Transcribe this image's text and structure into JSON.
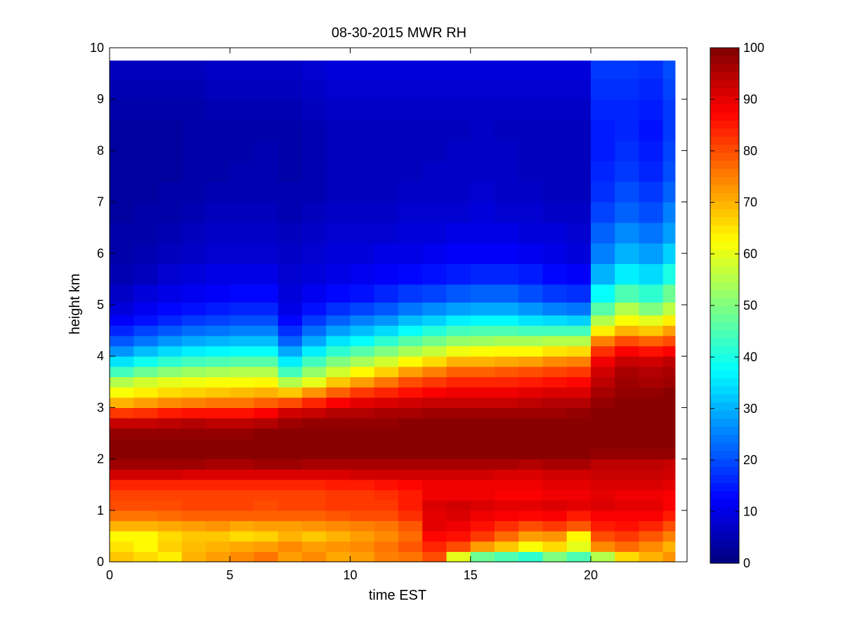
{
  "chart_data": {
    "type": "heatmap",
    "title": "08-30-2015 MWR RH",
    "xlabel": "time EST",
    "ylabel": "height km",
    "xlim": [
      0,
      24
    ],
    "ylim": [
      0,
      10
    ],
    "x_ticks": [
      0,
      5,
      10,
      15,
      20
    ],
    "y_ticks": [
      0,
      1,
      2,
      3,
      4,
      5,
      6,
      7,
      8,
      9,
      10
    ],
    "colorbar": {
      "colormap": "jet",
      "range": [
        0,
        100
      ],
      "ticks": [
        0,
        10,
        20,
        30,
        40,
        50,
        60,
        70,
        80,
        90,
        100
      ]
    },
    "time_hours": [
      0.5,
      1.5,
      2.5,
      3.5,
      4.5,
      5.5,
      6.5,
      7.5,
      8.5,
      9.5,
      10.5,
      11.5,
      12.5,
      13.5,
      14.5,
      15.5,
      16.5,
      17.5,
      18.5,
      19.5,
      20.5,
      21.5,
      22.5,
      23.5
    ],
    "height_km": [
      0.1,
      0.3,
      0.5,
      0.7,
      0.9,
      1.1,
      1.3,
      1.5,
      1.7,
      1.9,
      2.1,
      2.3,
      2.5,
      2.7,
      2.9,
      3.1,
      3.3,
      3.5,
      3.7,
      3.9,
      4.1,
      4.3,
      4.5,
      4.7,
      4.9,
      5.2,
      5.6,
      6.0,
      6.4,
      6.8,
      7.2,
      7.6,
      8.0,
      8.4,
      8.8,
      9.2,
      9.6
    ],
    "rh_percent": [
      [
        68,
        66,
        64,
        70,
        72,
        74,
        76,
        72,
        74,
        71,
        72,
        75,
        76,
        80,
        60,
        48,
        45,
        42,
        50,
        45,
        55,
        66,
        70,
        73
      ],
      [
        65,
        63,
        67,
        69,
        70,
        71,
        72,
        74,
        72,
        73,
        74,
        76,
        79,
        84,
        80,
        72,
        68,
        62,
        66,
        60,
        74,
        77,
        74,
        70
      ],
      [
        63,
        63,
        66,
        68,
        68,
        66,
        67,
        70,
        68,
        70,
        72,
        74,
        77,
        87,
        86,
        82,
        77,
        72,
        73,
        63,
        80,
        82,
        79,
        75
      ],
      [
        70,
        70,
        71,
        72,
        73,
        71,
        72,
        72,
        73,
        74,
        75,
        76,
        79,
        90,
        89,
        86,
        83,
        80,
        82,
        79,
        85,
        86,
        84,
        80
      ],
      [
        76,
        76,
        77,
        78,
        78,
        78,
        78,
        78,
        78,
        79,
        80,
        80,
        83,
        90,
        91,
        89,
        88,
        87,
        88,
        85,
        88,
        88,
        88,
        85
      ],
      [
        80,
        80,
        80,
        81,
        81,
        81,
        80,
        81,
        81,
        82,
        82,
        82,
        85,
        91,
        92,
        91,
        90,
        90,
        91,
        90,
        91,
        90,
        90,
        88
      ],
      [
        81,
        81,
        81,
        81,
        81,
        81,
        81,
        81,
        81,
        82,
        82,
        83,
        85,
        89,
        89,
        89,
        88,
        88,
        89,
        89,
        90,
        89,
        89,
        88
      ],
      [
        84,
        84,
        84,
        84,
        84,
        84,
        84,
        84,
        84,
        85,
        85,
        86,
        87,
        89,
        89,
        89,
        89,
        89,
        90,
        90,
        91,
        91,
        91,
        90
      ],
      [
        92,
        92,
        92,
        91,
        91,
        91,
        91,
        91,
        91,
        91,
        92,
        92,
        92,
        92,
        92,
        92,
        91,
        91,
        92,
        92,
        93,
        93,
        93,
        92
      ],
      [
        97,
        97,
        97,
        97,
        96,
        96,
        97,
        97,
        96,
        96,
        96,
        96,
        96,
        96,
        96,
        96,
        96,
        95,
        96,
        96,
        94,
        94,
        94,
        93
      ],
      [
        99,
        99,
        99,
        99,
        99,
        99,
        99,
        99,
        99,
        99,
        99,
        99,
        99,
        99,
        99,
        99,
        99,
        99,
        99,
        99,
        98,
        98,
        98,
        98
      ],
      [
        99,
        99,
        99,
        99,
        99,
        99,
        99,
        99,
        99,
        99,
        99,
        99,
        99,
        99,
        99,
        99,
        99,
        99,
        99,
        99,
        99,
        99,
        99,
        99
      ],
      [
        98,
        98,
        98,
        98,
        98,
        98,
        99,
        99,
        99,
        99,
        99,
        99,
        99,
        99,
        99,
        99,
        99,
        99,
        99,
        99,
        99,
        99,
        99,
        99
      ],
      [
        93,
        93,
        94,
        95,
        94,
        94,
        95,
        97,
        98,
        98,
        98,
        98,
        99,
        99,
        99,
        99,
        99,
        99,
        99,
        99,
        99,
        99,
        99,
        99
      ],
      [
        82,
        83,
        85,
        86,
        86,
        86,
        88,
        92,
        93,
        95,
        95,
        96,
        96,
        97,
        97,
        97,
        97,
        97,
        97,
        98,
        99,
        99,
        99,
        99
      ],
      [
        70,
        72,
        74,
        75,
        76,
        76,
        78,
        80,
        84,
        88,
        90,
        91,
        92,
        93,
        93,
        93,
        93,
        94,
        95,
        95,
        98,
        99,
        99,
        99
      ],
      [
        62,
        64,
        66,
        67,
        68,
        69,
        70,
        68,
        73,
        78,
        82,
        84,
        86,
        88,
        89,
        89,
        89,
        90,
        91,
        91,
        96,
        98,
        98,
        99
      ],
      [
        55,
        58,
        60,
        61,
        62,
        62,
        63,
        55,
        60,
        68,
        72,
        76,
        80,
        82,
        84,
        84,
        84,
        85,
        86,
        87,
        94,
        97,
        96,
        97
      ],
      [
        44,
        48,
        51,
        53,
        54,
        55,
        55,
        44,
        52,
        58,
        63,
        67,
        72,
        75,
        78,
        78,
        79,
        80,
        81,
        82,
        92,
        96,
        95,
        96
      ],
      [
        35,
        39,
        42,
        44,
        45,
        46,
        46,
        36,
        44,
        50,
        54,
        58,
        63,
        66,
        70,
        70,
        71,
        72,
        74,
        75,
        89,
        93,
        92,
        94
      ],
      [
        27,
        31,
        34,
        36,
        37,
        38,
        38,
        29,
        36,
        42,
        46,
        50,
        54,
        57,
        61,
        62,
        63,
        63,
        65,
        66,
        83,
        88,
        86,
        88
      ],
      [
        21,
        24,
        27,
        29,
        30,
        31,
        31,
        22,
        29,
        35,
        38,
        42,
        46,
        49,
        52,
        53,
        54,
        54,
        55,
        55,
        75,
        80,
        78,
        80
      ],
      [
        16,
        19,
        21,
        23,
        24,
        25,
        25,
        17,
        23,
        28,
        31,
        34,
        38,
        41,
        44,
        45,
        45,
        44,
        44,
        44,
        64,
        70,
        68,
        72
      ],
      [
        12,
        14,
        16,
        18,
        19,
        20,
        20,
        13,
        18,
        22,
        25,
        27,
        31,
        33,
        36,
        37,
        37,
        35,
        34,
        33,
        55,
        62,
        60,
        64
      ],
      [
        9,
        11,
        13,
        14,
        15,
        16,
        16,
        10,
        14,
        17,
        19,
        21,
        24,
        26,
        28,
        29,
        29,
        27,
        25,
        24,
        46,
        55,
        50,
        56
      ],
      [
        7,
        9,
        10,
        11,
        12,
        13,
        13,
        9,
        11,
        13,
        14,
        16,
        18,
        19,
        21,
        22,
        22,
        20,
        18,
        17,
        38,
        45,
        42,
        48
      ],
      [
        5,
        6,
        8,
        9,
        10,
        10,
        10,
        8,
        9,
        10,
        11,
        12,
        13,
        14,
        15,
        16,
        16,
        15,
        13,
        12,
        30,
        36,
        34,
        40
      ],
      [
        4,
        5,
        6,
        7,
        8,
        8,
        8,
        7,
        8,
        9,
        9,
        10,
        10,
        11,
        12,
        12,
        12,
        11,
        10,
        9,
        25,
        30,
        28,
        33
      ],
      [
        4,
        4,
        5,
        6,
        7,
        7,
        7,
        6,
        7,
        8,
        8,
        8,
        9,
        9,
        10,
        10,
        10,
        9,
        9,
        8,
        22,
        26,
        24,
        28
      ],
      [
        3,
        4,
        4,
        5,
        6,
        6,
        6,
        5,
        6,
        7,
        7,
        7,
        8,
        8,
        8,
        9,
        8,
        8,
        7,
        7,
        19,
        22,
        20,
        25
      ],
      [
        3,
        3,
        4,
        4,
        5,
        5,
        5,
        5,
        5,
        6,
        6,
        6,
        7,
        7,
        7,
        8,
        7,
        7,
        6,
        6,
        17,
        20,
        18,
        22
      ],
      [
        3,
        3,
        3,
        4,
        4,
        5,
        5,
        4,
        5,
        6,
        6,
        6,
        6,
        7,
        7,
        7,
        7,
        6,
        6,
        6,
        16,
        18,
        16,
        20
      ],
      [
        3,
        3,
        3,
        4,
        4,
        4,
        5,
        4,
        5,
        6,
        6,
        6,
        6,
        6,
        7,
        7,
        7,
        6,
        6,
        6,
        15,
        17,
        15,
        19
      ],
      [
        3,
        3,
        3,
        4,
        4,
        4,
        4,
        4,
        5,
        6,
        6,
        6,
        6,
        6,
        6,
        7,
        6,
        6,
        6,
        6,
        15,
        16,
        14,
        18
      ],
      [
        4,
        4,
        4,
        4,
        5,
        5,
        5,
        5,
        6,
        7,
        7,
        7,
        7,
        7,
        7,
        7,
        7,
        7,
        7,
        7,
        16,
        16,
        15,
        18
      ],
      [
        5,
        5,
        5,
        5,
        6,
        6,
        6,
        6,
        7,
        8,
        8,
        8,
        8,
        8,
        8,
        8,
        8,
        8,
        8,
        8,
        17,
        17,
        16,
        19
      ],
      [
        6,
        6,
        6,
        6,
        7,
        7,
        7,
        7,
        8,
        9,
        9,
        9,
        9,
        9,
        9,
        9,
        9,
        9,
        9,
        9,
        18,
        18,
        17,
        20
      ]
    ]
  }
}
